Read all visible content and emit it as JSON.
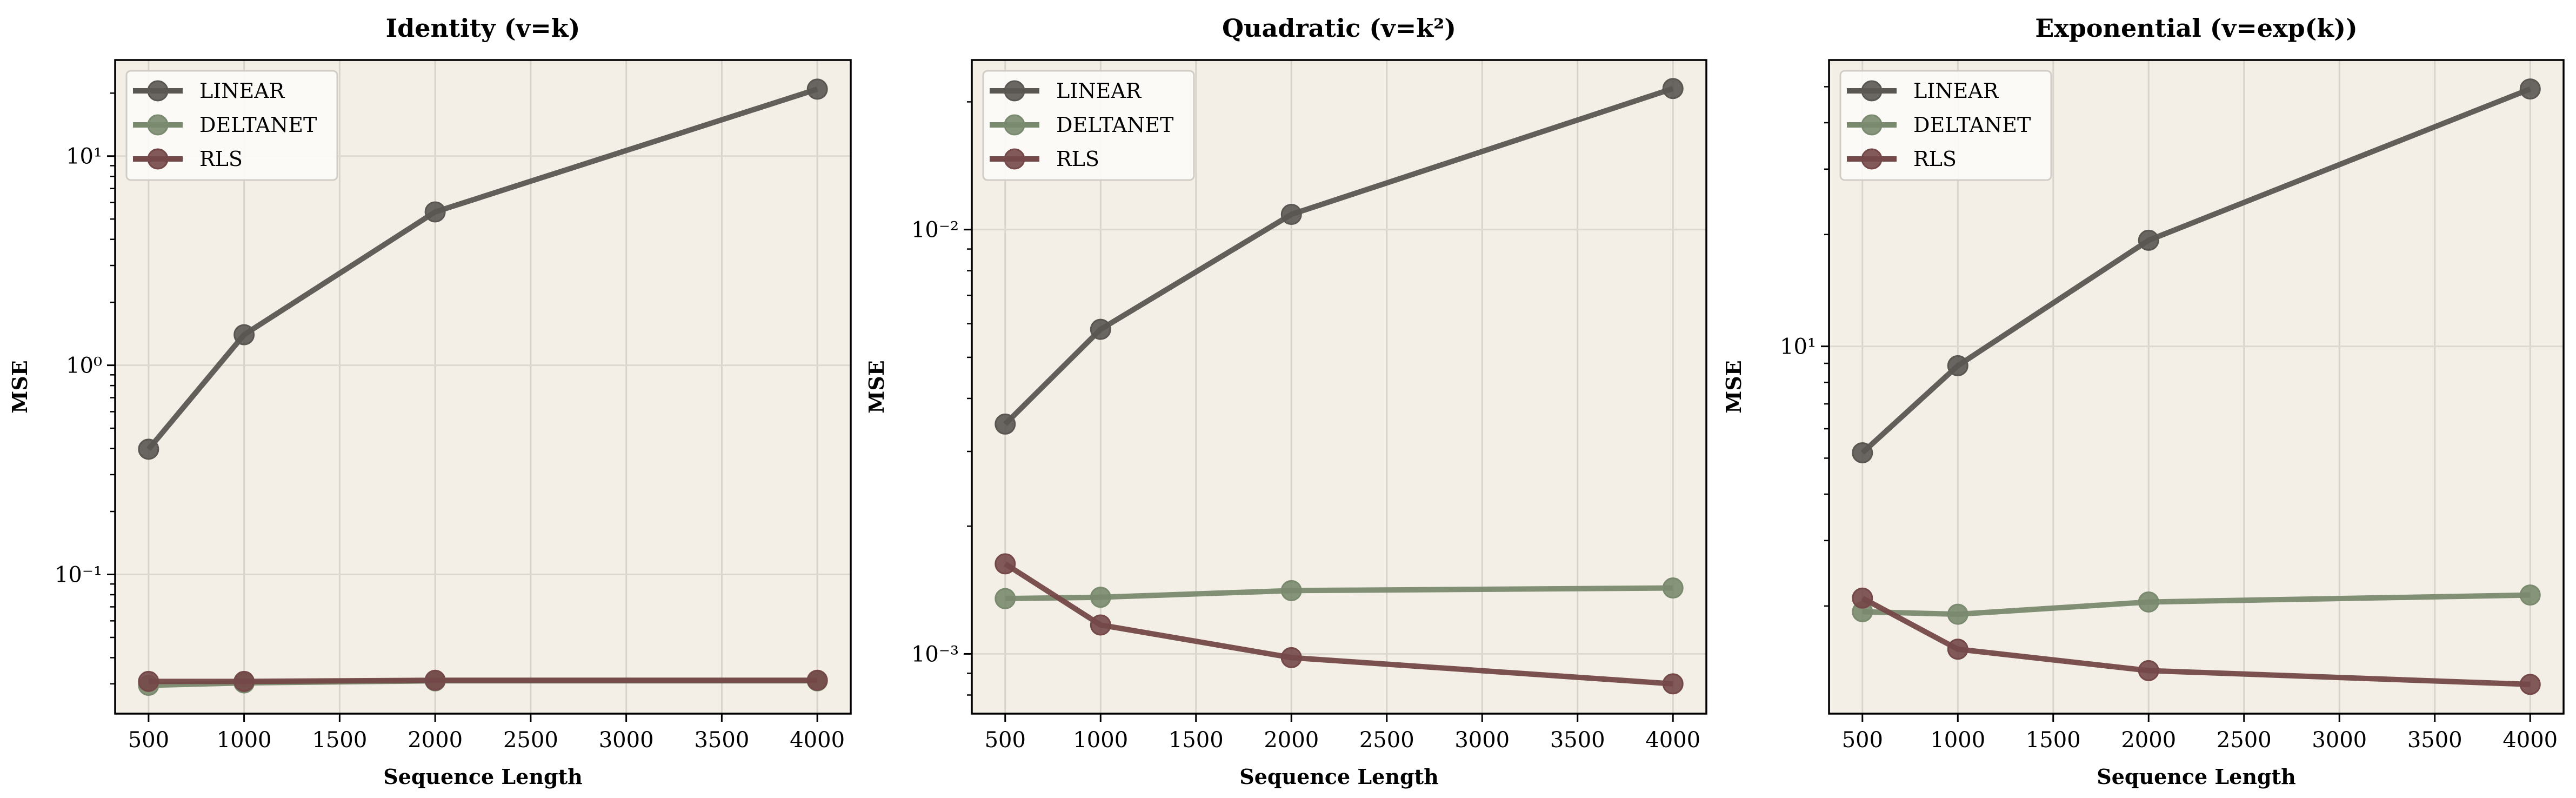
{
  "chart_data": [
    {
      "type": "line",
      "title": "Identity (v=k)",
      "xlabel": "Sequence Length",
      "ylabel": "MSE",
      "yscale": "log",
      "x": [
        500,
        1000,
        2000,
        4000
      ],
      "xlim": [
        325,
        4175
      ],
      "xticks": [
        500,
        1000,
        1500,
        2000,
        2500,
        3000,
        3500,
        4000
      ],
      "ylim": [
        0.0216,
        28.8
      ],
      "yticks": [
        {
          "value": 0.1,
          "label": "10⁻¹"
        },
        {
          "value": 1,
          "label": "10⁰"
        },
        {
          "value": 10,
          "label": "10¹"
        }
      ],
      "grid": true,
      "legend": "upper-left",
      "series": [
        {
          "name": "LINEAR",
          "color": "#5a5652",
          "values": [
            0.397,
            1.4,
            5.41,
            20.9
          ]
        },
        {
          "name": "DELTANET",
          "color": "#7a8a6e",
          "values": [
            0.0295,
            0.0303,
            0.031,
            0.031
          ]
        },
        {
          "name": "RLS",
          "color": "#744848",
          "values": [
            0.0308,
            0.0308,
            0.0312,
            0.0312
          ]
        }
      ]
    },
    {
      "type": "line",
      "title": "Quadratic (v=k²)",
      "xlabel": "Sequence Length",
      "ylabel": "MSE",
      "yscale": "log",
      "x": [
        500,
        1000,
        2000,
        4000
      ],
      "xlim": [
        325,
        4175
      ],
      "xticks": [
        500,
        1000,
        1500,
        2000,
        2500,
        3000,
        3500,
        4000
      ],
      "ylim": [
        0.000723,
        0.0251
      ],
      "yticks": [
        {
          "value": 0.001,
          "label": "10⁻³"
        },
        {
          "value": 0.01,
          "label": "10⁻²"
        }
      ],
      "grid": true,
      "legend": "upper-left",
      "series": [
        {
          "name": "LINEAR",
          "color": "#5a5652",
          "values": [
            0.00348,
            0.00582,
            0.01086,
            0.0215
          ]
        },
        {
          "name": "DELTANET",
          "color": "#7a8a6e",
          "values": [
            0.00135,
            0.00136,
            0.00141,
            0.00143
          ]
        },
        {
          "name": "RLS",
          "color": "#744848",
          "values": [
            0.00163,
            0.00117,
            0.00098,
            0.00085
          ]
        }
      ]
    },
    {
      "type": "line",
      "title": "Exponential (v=exp(k))",
      "xlabel": "Sequence Length",
      "ylabel": "MSE",
      "yscale": "log",
      "x": [
        500,
        1000,
        2000,
        4000
      ],
      "xlim": [
        325,
        4175
      ],
      "xticks": [
        500,
        1000,
        1500,
        2000,
        2500,
        3000,
        3500,
        4000
      ],
      "ylim": [
        1.026,
        59
      ],
      "yticks": [
        {
          "value": 10,
          "label": "10¹"
        }
      ],
      "grid": true,
      "legend": "upper-left",
      "series": [
        {
          "name": "LINEAR",
          "color": "#5a5652",
          "values": [
            5.17,
            8.87,
            19.3,
            49.3
          ]
        },
        {
          "name": "DELTANET",
          "color": "#7a8a6e",
          "values": [
            1.93,
            1.9,
            2.05,
            2.14
          ]
        },
        {
          "name": "RLS",
          "color": "#744848",
          "values": [
            2.1,
            1.53,
            1.34,
            1.23
          ]
        }
      ]
    }
  ]
}
